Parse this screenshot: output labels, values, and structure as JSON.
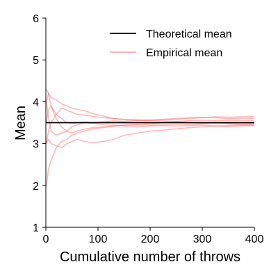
{
  "chart_data": {
    "type": "line",
    "xlabel": "Cumulative number of throws",
    "ylabel": "Mean",
    "xlim": [
      0,
      400
    ],
    "ylim": [
      1,
      6
    ],
    "xticks": [
      0,
      100,
      200,
      300,
      400
    ],
    "yticks": [
      1,
      2,
      3,
      4,
      5,
      6
    ],
    "grid": false,
    "legend_position": "top-right",
    "colors": {
      "theoretical": "#000000",
      "empirical": "#ff6666"
    },
    "theoretical": {
      "name": "Theoretical mean",
      "value": 3.5
    },
    "empirical_legend": "Empirical mean",
    "empirical_series": [
      {
        "x": [
          1,
          5,
          10,
          20,
          30,
          40,
          50,
          60,
          75,
          90,
          110,
          130,
          150,
          175,
          200,
          225,
          250,
          275,
          300,
          325,
          350,
          375,
          400
        ],
        "values": [
          4.0,
          4.2,
          4.1,
          4.05,
          3.95,
          3.9,
          3.85,
          3.82,
          3.78,
          3.72,
          3.66,
          3.6,
          3.57,
          3.55,
          3.56,
          3.58,
          3.6,
          3.62,
          3.63,
          3.62,
          3.6,
          3.61,
          3.6
        ]
      },
      {
        "x": [
          1,
          5,
          10,
          20,
          30,
          40,
          50,
          60,
          75,
          90,
          110,
          130,
          150,
          175,
          200,
          225,
          250,
          275,
          300,
          325,
          350,
          375,
          400
        ],
        "values": [
          2.0,
          2.4,
          2.6,
          2.9,
          3.05,
          3.1,
          3.2,
          3.25,
          3.3,
          3.35,
          3.38,
          3.42,
          3.45,
          3.46,
          3.47,
          3.5,
          3.52,
          3.5,
          3.49,
          3.5,
          3.48,
          3.47,
          3.48
        ]
      },
      {
        "x": [
          1,
          5,
          10,
          20,
          30,
          40,
          50,
          60,
          75,
          90,
          110,
          130,
          150,
          175,
          200,
          225,
          250,
          275,
          300,
          325,
          350,
          375,
          400
        ],
        "values": [
          3.0,
          3.1,
          3.0,
          2.95,
          2.9,
          3.0,
          3.05,
          3.1,
          3.05,
          3.02,
          3.05,
          3.1,
          3.2,
          3.25,
          3.3,
          3.32,
          3.35,
          3.38,
          3.4,
          3.42,
          3.41,
          3.42,
          3.43
        ]
      },
      {
        "x": [
          1,
          5,
          10,
          20,
          30,
          40,
          50,
          60,
          75,
          90,
          110,
          130,
          150,
          175,
          200,
          225,
          250,
          275,
          300,
          325,
          350,
          375,
          400
        ],
        "values": [
          4.3,
          4.2,
          3.9,
          3.7,
          3.6,
          3.5,
          3.48,
          3.5,
          3.52,
          3.5,
          3.52,
          3.54,
          3.53,
          3.55,
          3.55,
          3.54,
          3.53,
          3.55,
          3.56,
          3.55,
          3.56,
          3.55,
          3.55
        ]
      },
      {
        "x": [
          1,
          5,
          10,
          20,
          30,
          40,
          50,
          60,
          75,
          90,
          110,
          130,
          150,
          175,
          200,
          225,
          250,
          275,
          300,
          325,
          350,
          375,
          400
        ],
        "values": [
          3.5,
          3.8,
          3.9,
          3.6,
          3.4,
          3.3,
          3.25,
          3.3,
          3.35,
          3.38,
          3.4,
          3.42,
          3.43,
          3.45,
          3.44,
          3.45,
          3.46,
          3.46,
          3.47,
          3.48,
          3.47,
          3.46,
          3.47
        ]
      },
      {
        "x": [
          1,
          5,
          10,
          20,
          30,
          40,
          50,
          60,
          75,
          90,
          110,
          130,
          150,
          175,
          200,
          225,
          250,
          275,
          300,
          325,
          350,
          375,
          400
        ],
        "values": [
          3.0,
          3.3,
          3.5,
          3.7,
          3.85,
          3.8,
          3.75,
          3.7,
          3.68,
          3.65,
          3.62,
          3.6,
          3.58,
          3.57,
          3.56,
          3.57,
          3.58,
          3.6,
          3.62,
          3.64,
          3.63,
          3.64,
          3.65
        ]
      },
      {
        "x": [
          1,
          5,
          10,
          20,
          30,
          40,
          50,
          60,
          75,
          90,
          110,
          130,
          150,
          175,
          200,
          225,
          250,
          275,
          300,
          325,
          350,
          375,
          400
        ],
        "values": [
          4.0,
          3.6,
          3.3,
          3.2,
          3.25,
          3.3,
          3.4,
          3.45,
          3.5,
          3.48,
          3.45,
          3.44,
          3.42,
          3.4,
          3.42,
          3.43,
          3.42,
          3.43,
          3.44,
          3.42,
          3.43,
          3.44,
          3.44
        ]
      }
    ]
  }
}
